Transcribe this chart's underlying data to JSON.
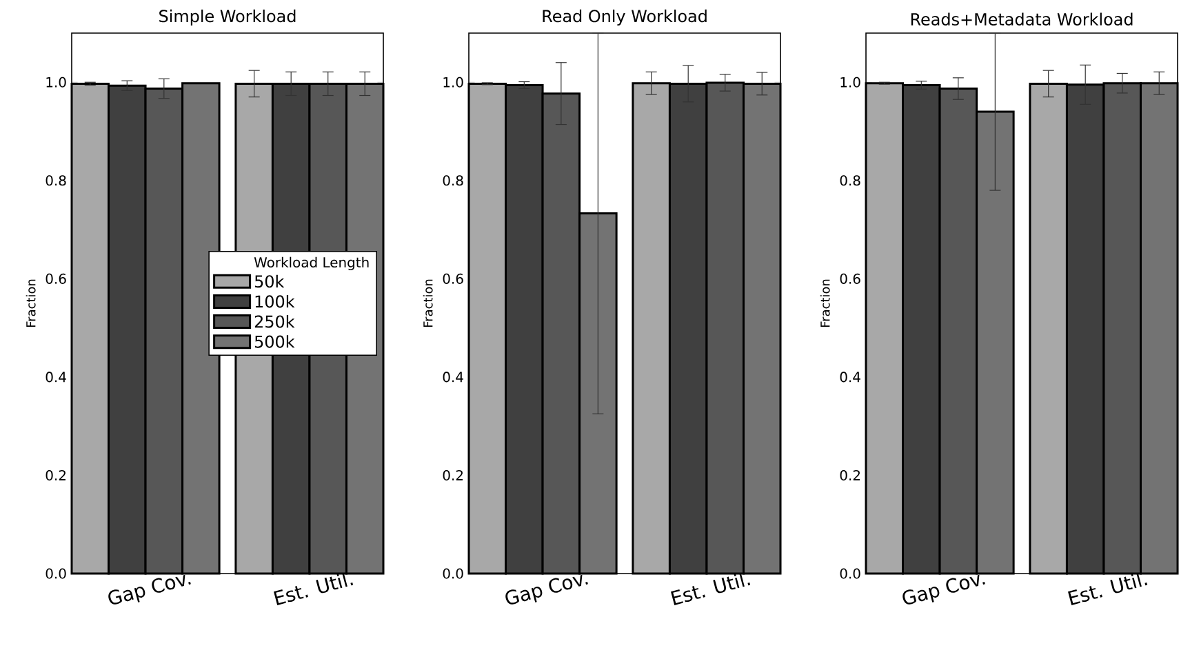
{
  "chart_data": [
    {
      "type": "bar",
      "title": "Simple Workload",
      "ylabel": "Fraction",
      "categories": [
        "Gap Cov.",
        "Est. Util."
      ],
      "ylim": [
        0,
        1.1
      ],
      "yticks": [
        {
          "value": 0,
          "label": "0.0"
        },
        {
          "value": 0.2,
          "label": "0.2"
        },
        {
          "value": 0.4,
          "label": "0.4"
        },
        {
          "value": 0.6,
          "label": "0.6"
        },
        {
          "value": 0.8,
          "label": "0.8"
        },
        {
          "value": 1,
          "label": "1.0"
        }
      ],
      "legend": "right",
      "legend_title": "Workload Length",
      "series": [
        {
          "name": "50k",
          "color": "#a8a8a8",
          "values": [
            0.997,
            0.997
          ],
          "errors": [
            0.003,
            0.027
          ]
        },
        {
          "name": "100k",
          "color": "#404040",
          "values": [
            0.993,
            0.997
          ],
          "errors": [
            0.01,
            0.024
          ]
        },
        {
          "name": "250k",
          "color": "#575757",
          "values": [
            0.987,
            0.997
          ],
          "errors": [
            0.02,
            0.024
          ]
        },
        {
          "name": "500k",
          "color": "#737373",
          "values": [
            0.998,
            0.997
          ],
          "errors": [
            null,
            0.024
          ]
        }
      ]
    },
    {
      "type": "bar",
      "title": "Read Only Workload",
      "ylabel": "Fraction",
      "categories": [
        "Gap Cov.",
        "Est. Util."
      ],
      "ylim": [
        0,
        1.1
      ],
      "yticks": [
        {
          "value": 0,
          "label": "0.0"
        },
        {
          "value": 0.2,
          "label": "0.2"
        },
        {
          "value": 0.4,
          "label": "0.4"
        },
        {
          "value": 0.6,
          "label": "0.6"
        },
        {
          "value": 0.8,
          "label": "0.8"
        },
        {
          "value": 1,
          "label": "1.0"
        }
      ],
      "series": [
        {
          "color": "#a8a8a8",
          "values": [
            0.997,
            0.998
          ],
          "errors": [
            0.002,
            0.023
          ]
        },
        {
          "color": "#404040",
          "values": [
            0.994,
            0.997
          ],
          "errors": [
            0.007,
            0.037
          ]
        },
        {
          "color": "#575757",
          "values": [
            0.977,
            0.999
          ],
          "errors": [
            0.063,
            0.017
          ]
        },
        {
          "color": "#737373",
          "values": [
            0.733,
            0.997
          ],
          "errors": [
            [
              0.325,
              1.1
            ],
            0.023
          ]
        }
      ]
    },
    {
      "type": "bar",
      "title": "Reads+Metadata Workload",
      "ylabel": "Fraction",
      "categories": [
        "Gap Cov.",
        "Est. Util."
      ],
      "ylim": [
        0,
        1.1
      ],
      "yticks": [
        {
          "value": 0,
          "label": "0.0"
        },
        {
          "value": 0.2,
          "label": "0.2"
        },
        {
          "value": 0.4,
          "label": "0.4"
        },
        {
          "value": 0.6,
          "label": "0.6"
        },
        {
          "value": 0.8,
          "label": "0.8"
        },
        {
          "value": 1,
          "label": "1.0"
        }
      ],
      "series": [
        {
          "color": "#a8a8a8",
          "values": [
            0.998,
            0.997
          ],
          "errors": [
            0.002,
            0.027
          ]
        },
        {
          "color": "#404040",
          "values": [
            0.994,
            0.995
          ],
          "errors": [
            0.008,
            0.04
          ]
        },
        {
          "color": "#575757",
          "values": [
            0.987,
            0.998
          ],
          "errors": [
            0.022,
            0.02
          ]
        },
        {
          "color": "#737373",
          "values": [
            0.94,
            0.998
          ],
          "errors": [
            [
              0.78,
              1.1
            ],
            0.023
          ]
        }
      ]
    }
  ]
}
